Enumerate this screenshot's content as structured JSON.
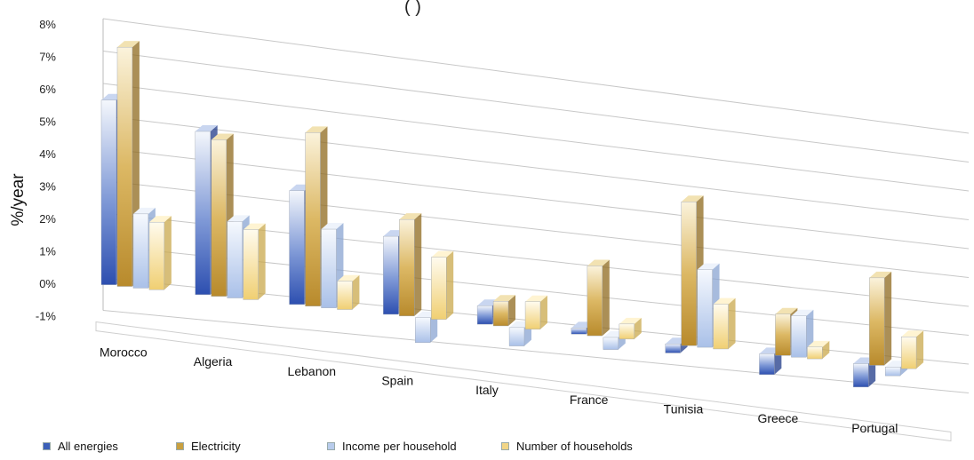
{
  "title_fragment": "(          )",
  "chart_data": {
    "type": "bar",
    "title": "",
    "ylabel": "%/year",
    "xlabel": "",
    "ylim": [
      -1,
      8
    ],
    "yticks": [
      "-1%",
      "0%",
      "1%",
      "2%",
      "3%",
      "4%",
      "5%",
      "6%",
      "7%",
      "8%"
    ],
    "categories": [
      "Morocco",
      "Algeria",
      "Lebanon",
      "Spain",
      "Italy",
      "France",
      "Tunisia",
      "Greece",
      "Portugal"
    ],
    "series": [
      {
        "name": "All energies",
        "values": [
          5.7,
          5.1,
          3.6,
          2.5,
          0.6,
          0.2,
          -0.3,
          -0.7,
          -0.8
        ]
      },
      {
        "name": "Electricity",
        "values": [
          7.4,
          4.9,
          5.5,
          3.1,
          0.8,
          2.3,
          4.8,
          1.4,
          3.0
        ]
      },
      {
        "name": "Income per household",
        "values": [
          2.3,
          2.4,
          2.5,
          -0.8,
          -0.6,
          -0.4,
          2.6,
          1.4,
          -0.3
        ]
      },
      {
        "name": "Number of households",
        "values": [
          2.1,
          2.2,
          0.9,
          2.0,
          0.9,
          0.5,
          1.5,
          0.4,
          1.1
        ]
      }
    ],
    "grid": true,
    "legend_position": "bottom"
  },
  "colors": {
    "All energies": "#3b5fb8",
    "Electricity": "#c9a040",
    "Income per household": "#b8ccec",
    "Number of households": "#f1d586",
    "grid": "#c8c8c8"
  }
}
